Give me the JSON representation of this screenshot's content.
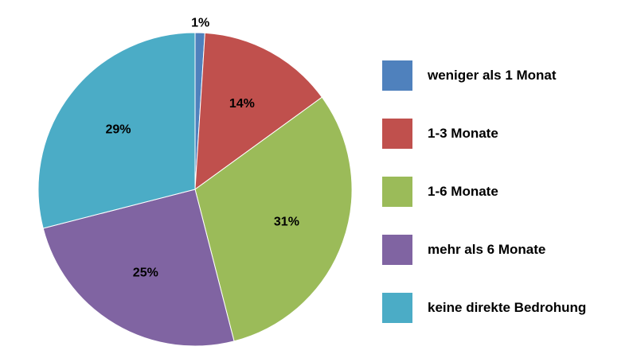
{
  "chart_data": {
    "type": "pie",
    "title": "",
    "start_angle_deg": 0,
    "direction": "clockwise",
    "slices": [
      {
        "label": "weniger als 1 Monat",
        "value": 1,
        "display": "1%",
        "color": "#4f81bd"
      },
      {
        "label": "1-3 Monate",
        "value": 14,
        "display": "14%",
        "color": "#c0504d"
      },
      {
        "label": "1-6 Monate",
        "value": 31,
        "display": "31%",
        "color": "#9bbb59"
      },
      {
        "label": "mehr als 6 Monate",
        "value": 25,
        "display": "25%",
        "color": "#8064a2"
      },
      {
        "label": "keine direkte Bedrohung",
        "value": 29,
        "display": "29%",
        "color": "#4bacc6"
      }
    ],
    "legend_position": "right"
  }
}
